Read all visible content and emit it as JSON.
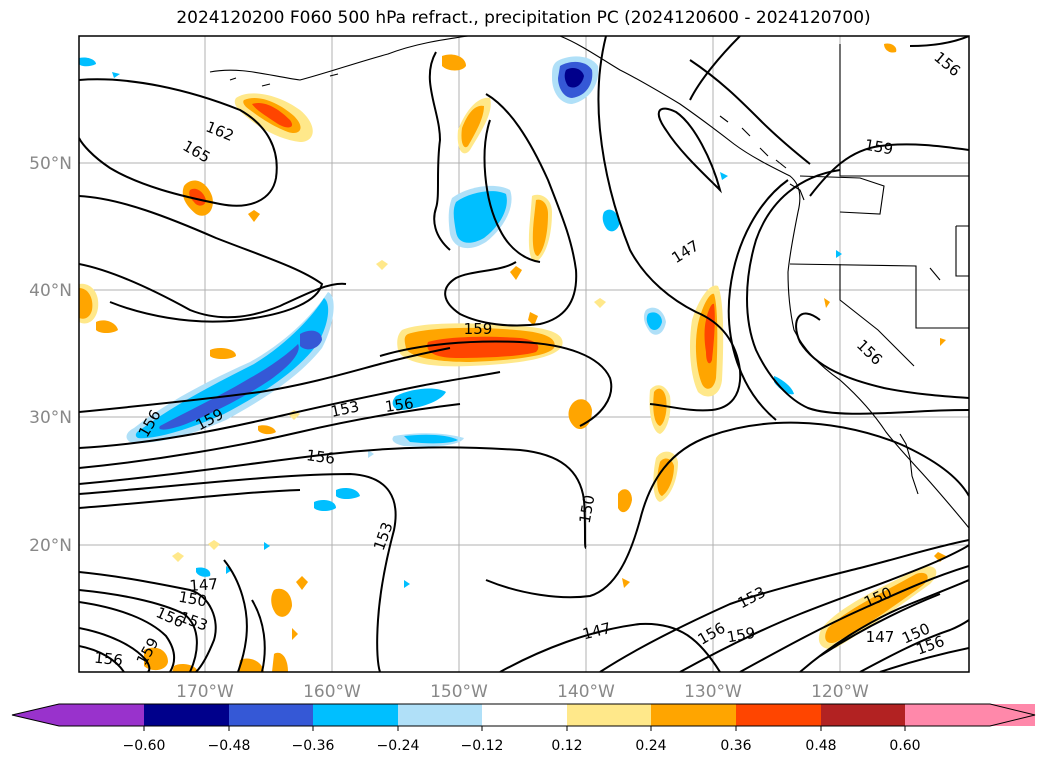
{
  "title": "2024120200 F060 500 hPa refract., precipitation PC (2024120600 - 2024120700)",
  "lat_labels": [
    "50°N",
    "40°N",
    "30°N",
    "20°N"
  ],
  "lon_labels": [
    "170°W",
    "160°W",
    "150°W",
    "140°W",
    "130°W",
    "120°W"
  ],
  "contour_labels": [
    "162",
    "165",
    "156",
    "159",
    "153",
    "156",
    "159",
    "156",
    "150",
    "153",
    "147",
    "147",
    "150",
    "153",
    "156",
    "159",
    "156",
    "147",
    "153",
    "156",
    "159",
    "150",
    "147",
    "150",
    "156",
    "156",
    "159",
    "156"
  ],
  "colorbar": {
    "colors": [
      "#9932cc",
      "#00008b",
      "#3558d6",
      "#00bfff",
      "#b0e0f8",
      "#ffffff",
      "#ffe88a",
      "#ffa500",
      "#ff4500",
      "#b22222",
      "#ff88aa"
    ],
    "tick_labels": [
      "−0.60",
      "−0.48",
      "−0.36",
      "−0.24",
      "−0.12",
      "0.12",
      "0.24",
      "0.36",
      "0.48",
      "0.60"
    ]
  }
}
